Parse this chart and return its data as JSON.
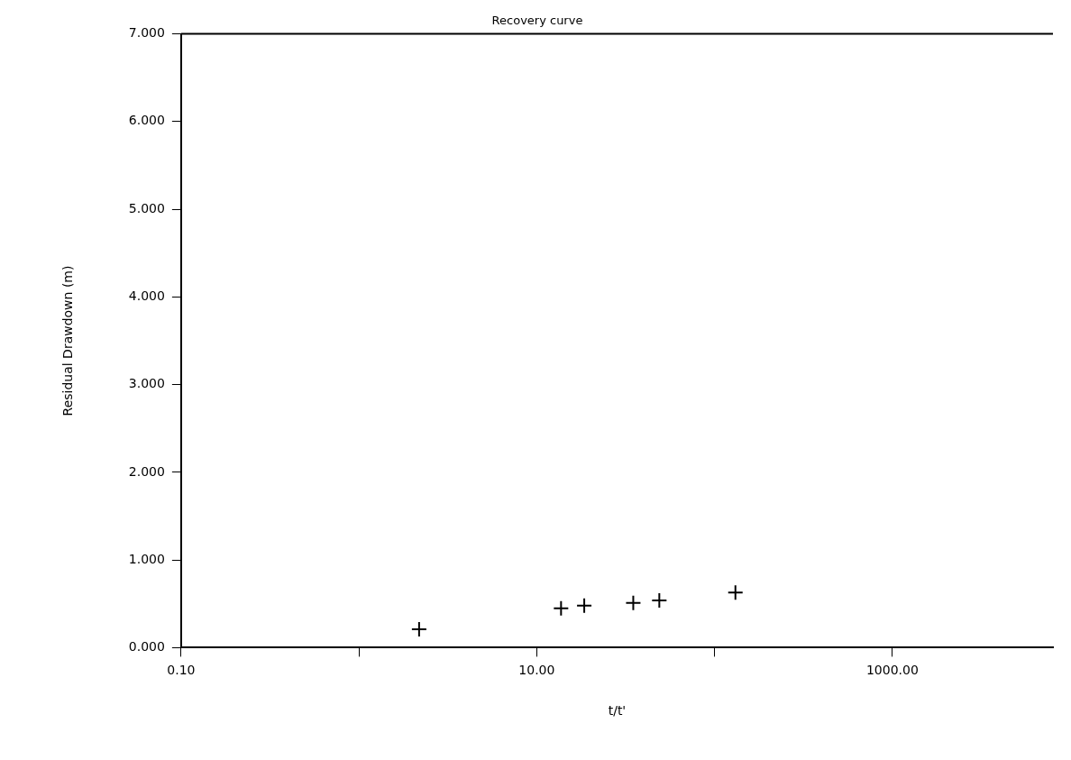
{
  "chart_data": {
    "type": "scatter",
    "title": "Recovery curve",
    "xlabel": "t/t'",
    "ylabel": "Residual Drawdown (m)",
    "log": "x",
    "grid": false,
    "legend": false,
    "marker": "cross",
    "x": [
      2.18,
      13.7,
      18.5,
      34.9,
      48.9,
      131
    ],
    "series": [
      {
        "color": "#000000",
        "values": [
          0.21,
          0.45,
          0.48,
          0.51,
          0.54,
          0.63
        ]
      }
    ],
    "xlim": [
      0.1,
      8000
    ],
    "xticks": [
      {
        "value": 0.1,
        "label": "0.10"
      },
      {
        "value": 1,
        "label": null
      },
      {
        "value": 10,
        "label": "10.00"
      },
      {
        "value": 100,
        "label": null
      },
      {
        "value": 1000,
        "label": "1000.00"
      }
    ],
    "ylim": [
      0,
      7
    ],
    "yticks": [
      {
        "value": 0,
        "label": "0.000"
      },
      {
        "value": 1,
        "label": "1.000"
      },
      {
        "value": 2,
        "label": "2.000"
      },
      {
        "value": 3,
        "label": "3.000"
      },
      {
        "value": 4,
        "label": "4.000"
      },
      {
        "value": 5,
        "label": "5.000"
      },
      {
        "value": 6,
        "label": "6.000"
      },
      {
        "value": 7,
        "label": "7.000"
      }
    ]
  }
}
